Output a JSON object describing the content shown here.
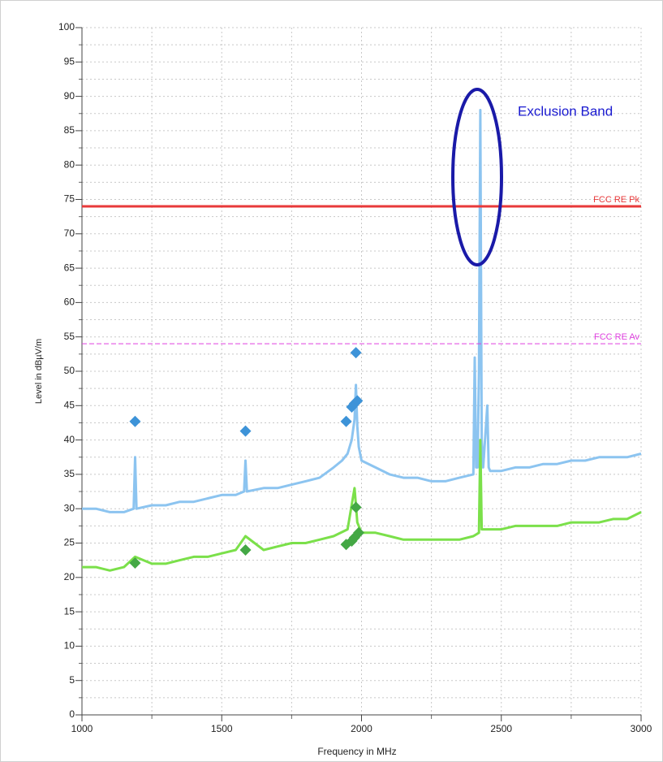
{
  "chart_data": {
    "type": "line",
    "xlabel": "Frequency in MHz",
    "ylabel": "Level in dBµV/m",
    "xlim": [
      1000,
      3000
    ],
    "ylim": [
      0,
      100
    ],
    "xticks": [
      1000,
      1500,
      2000,
      2500,
      3000
    ],
    "x_minor_ticks": [
      1250,
      1750,
      2250,
      2750
    ],
    "yticks": [
      0,
      5,
      10,
      15,
      20,
      25,
      30,
      35,
      40,
      45,
      50,
      55,
      60,
      65,
      70,
      75,
      80,
      85,
      90,
      95,
      100
    ],
    "y_minor_ticks": [
      2.5,
      7.5,
      12.5,
      17.5,
      22.5,
      27.5,
      32.5,
      37.5,
      42.5,
      47.5,
      52.5,
      57.5,
      62.5,
      67.5,
      72.5,
      77.5,
      82.5,
      87.5,
      92.5,
      97.5
    ],
    "grid": true,
    "series": [
      {
        "color": "#8cc4f0",
        "x": [
          1000,
          1050,
          1100,
          1150,
          1185,
          1190,
          1195,
          1250,
          1300,
          1350,
          1400,
          1450,
          1500,
          1550,
          1580,
          1585,
          1590,
          1650,
          1700,
          1750,
          1800,
          1850,
          1900,
          1930,
          1950,
          1965,
          1975,
          1980,
          1985,
          1990,
          2000,
          2050,
          2100,
          2150,
          2200,
          2250,
          2300,
          2350,
          2400,
          2405,
          2410,
          2415,
          2420,
          2425,
          2430,
          2435,
          2450,
          2455,
          2460,
          2500,
          2550,
          2600,
          2650,
          2700,
          2750,
          2800,
          2850,
          2900,
          2950,
          3000
        ],
        "values": [
          30,
          30,
          29.5,
          29.5,
          30,
          37.5,
          30,
          30.5,
          30.5,
          31,
          31,
          31.5,
          32,
          32,
          32.5,
          37,
          32.5,
          33,
          33,
          33.5,
          34,
          34.5,
          36,
          37,
          38,
          40,
          43,
          48,
          42,
          39,
          37,
          36,
          35,
          34.5,
          34.5,
          34,
          34,
          34.5,
          35,
          52,
          36,
          36,
          50,
          88,
          40,
          36,
          45,
          36,
          35.5,
          35.5,
          36,
          36,
          36.5,
          36.5,
          37,
          37,
          37.5,
          37.5,
          37.5,
          38
        ]
      },
      {
        "color": "#7be04a",
        "x": [
          1000,
          1050,
          1100,
          1150,
          1190,
          1250,
          1300,
          1350,
          1400,
          1450,
          1500,
          1550,
          1585,
          1650,
          1700,
          1750,
          1800,
          1850,
          1900,
          1950,
          1975,
          1985,
          2000,
          2050,
          2100,
          2150,
          2200,
          2250,
          2300,
          2350,
          2400,
          2420,
          2425,
          2430,
          2450,
          2500,
          2550,
          2600,
          2650,
          2700,
          2750,
          2800,
          2850,
          2900,
          2950,
          3000
        ],
        "values": [
          21.5,
          21.5,
          21,
          21.5,
          23,
          22,
          22,
          22.5,
          23,
          23,
          23.5,
          24,
          26,
          24,
          24.5,
          25,
          25,
          25.5,
          26,
          27,
          33,
          28,
          26.5,
          26.5,
          26,
          25.5,
          25.5,
          25.5,
          25.5,
          25.5,
          26,
          26.5,
          40,
          27,
          27,
          27,
          27.5,
          27.5,
          27.5,
          27.5,
          28,
          28,
          28,
          28.5,
          28.5,
          29.5
        ]
      }
    ],
    "markers": [
      {
        "color": "#3d93d8",
        "x": [
          1190,
          1585,
          1945,
          1965,
          1975,
          1985,
          1980
        ],
        "values": [
          42.7,
          41.3,
          42.7,
          44.8,
          45.3,
          45.7,
          52.7
        ]
      },
      {
        "color": "#44a845",
        "x": [
          1190,
          1585,
          1945,
          1965,
          1975,
          1990,
          1980
        ],
        "values": [
          22.1,
          24,
          24.8,
          25.3,
          25.8,
          26.5,
          30.2
        ]
      }
    ],
    "limit_lines": [
      {
        "label": "FCC RE Pk",
        "value": 74,
        "color": "#e8393a",
        "dashed": false
      },
      {
        "label": "FCC RE Av",
        "value": 54,
        "color": "#e040e0",
        "dashed": true
      }
    ],
    "annotation": "Exclusion Band"
  }
}
